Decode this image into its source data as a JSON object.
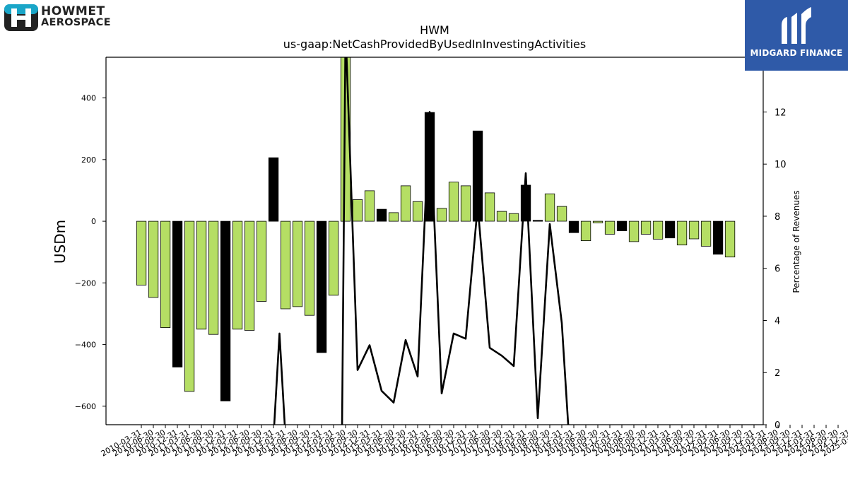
{
  "branding": {
    "left_line1": "HOWMET",
    "left_line2": "AEROSPACE",
    "right_text": "MIDGARD FINANCE"
  },
  "chart_data": {
    "type": "bar",
    "title": "HWM",
    "subtitle": "us-gaap:NetCashProvidedByUsedInInvestingActivities",
    "ylabel": "USDm",
    "y2label": "Percentage of Revenues",
    "ylim": [
      -660,
      532
    ],
    "y2lim": [
      0,
      14.1
    ],
    "yticks": [
      -600,
      -400,
      -200,
      0,
      200,
      400
    ],
    "y2ticks": [
      0,
      2,
      4,
      6,
      8,
      10,
      12
    ],
    "colors": {
      "quarter_bar": "#b5de64",
      "year_end_bar": "#000000",
      "line": "#000000"
    },
    "categories": [
      "2010-03-31",
      "2010-06-30",
      "2010-09-30",
      "2010-12-31",
      "2011-03-31",
      "2011-06-30",
      "2011-09-30",
      "2011-12-31",
      "2012-03-31",
      "2012-06-30",
      "2012-09-30",
      "2012-12-31",
      "2013-03-31",
      "2013-06-30",
      "2013-09-30",
      "2013-12-31",
      "2014-03-31",
      "2014-06-30",
      "2014-09-30",
      "2014-12-31",
      "2015-03-31",
      "2015-06-30",
      "2015-09-30",
      "2015-12-31",
      "2016-03-31",
      "2016-06-30",
      "2016-09-30",
      "2016-12-31",
      "2017-03-31",
      "2017-06-30",
      "2017-09-30",
      "2017-12-31",
      "2018-03-31",
      "2018-06-30",
      "2018-09-30",
      "2018-12-31",
      "2019-03-31",
      "2019-06-30",
      "2019-09-30",
      "2019-12-31",
      "2020-03-31",
      "2020-06-30",
      "2020-09-30",
      "2020-12-31",
      "2021-03-31",
      "2021-06-30",
      "2021-09-30",
      "2021-12-31",
      "2022-03-31",
      "2022-06-30",
      "2022-09-30",
      "2022-12-31",
      "2023-03-31",
      "2023-06-30",
      "2023-09-30",
      "2023-12-31",
      "2024-03-31",
      "2024-06-30",
      "2024-09-30",
      "2024-12-31",
      "2025-03-31"
    ],
    "xtick_labels": [
      "2010-03-31",
      "2010-06-30",
      "2010-09-30",
      "2010-12-31",
      "2011-03-31",
      "2011-06-30",
      "2011-09-30",
      "2011-12-31",
      "2012-03-31",
      "2012-06-30",
      "2012-09-30",
      "2012-12-31",
      "2013-03-31",
      "2013-06-30",
      "2013-09-30",
      "2013-12-31",
      "2014-03-31",
      "2014-06-30",
      "2014-09-30",
      "2014-12-31",
      "2015-03-31",
      "2015-06-30",
      "2015-09-30",
      "2015-12-31",
      "2016-03-31",
      "2016-06-30",
      "2016-09-30",
      "2016-12-31",
      "2017-03-31",
      "2017-06-30",
      "2017-09-30",
      "2017-12-31",
      "2018-03-31",
      "2018-06-30",
      "2018-09-30",
      "2018-12-31",
      "2019-03-31",
      "2019-06-30",
      "2019-09-30",
      "2019-12-31",
      "2020-03-31",
      "2020-06-30",
      "2020-09-30",
      "2020-12-31",
      "2021-03-31",
      "2021-06-30",
      "2021-09-30",
      "2021-12-31",
      "2022-03-31",
      "2022-06-30",
      "2022-09-30",
      "2022-12-31",
      "2023-03-31",
      "2023-06-30",
      "2023-09-30",
      "2023-12-31",
      "2024-03-31",
      "2024-06-30",
      "2024-09-30",
      "2024-12-31",
      "2025-03-31"
    ],
    "bars": [
      {
        "date": "2010-03-31",
        "value": -207,
        "year_end": false
      },
      {
        "date": "2010-06-30",
        "value": -247,
        "year_end": false
      },
      {
        "date": "2010-09-30",
        "value": -345,
        "year_end": false
      },
      {
        "date": "2010-12-31",
        "value": -473,
        "year_end": true
      },
      {
        "date": "2011-06-30",
        "value": -552,
        "year_end": false
      },
      {
        "date": "2011-09-30",
        "value": -350,
        "year_end": false
      },
      {
        "date": "2011-12-31",
        "value": -367,
        "year_end": false
      },
      {
        "date": "2012-03-31",
        "value": -583,
        "year_end": true
      },
      {
        "date": "2012-06-30",
        "value": -350,
        "year_end": false
      },
      {
        "date": "2012-09-30",
        "value": -354,
        "year_end": false
      },
      {
        "date": "2012-12-31",
        "value": -260,
        "year_end": false
      },
      {
        "date": "2013-03-31",
        "value": 206,
        "year_end": true
      },
      {
        "date": "2013-06-30",
        "value": -284,
        "year_end": false
      },
      {
        "date": "2013-09-30",
        "value": -277,
        "year_end": false
      },
      {
        "date": "2013-12-31",
        "value": -305,
        "year_end": false
      },
      {
        "date": "2014-03-31",
        "value": -426,
        "year_end": true
      },
      {
        "date": "2014-06-30",
        "value": -240,
        "year_end": false
      },
      {
        "date": "2014-09-30",
        "value": 560,
        "year_end": false
      },
      {
        "date": "2014-12-31",
        "value": 70,
        "year_end": false
      },
      {
        "date": "2015-03-31",
        "value": 99,
        "year_end": false
      },
      {
        "date": "2015-06-30",
        "value": 39,
        "year_end": true
      },
      {
        "date": "2015-09-30",
        "value": 28,
        "year_end": false
      },
      {
        "date": "2015-12-31",
        "value": 115,
        "year_end": false
      },
      {
        "date": "2016-03-31",
        "value": 64,
        "year_end": false
      },
      {
        "date": "2016-06-30",
        "value": 353,
        "year_end": true
      },
      {
        "date": "2016-09-30",
        "value": 42,
        "year_end": false
      },
      {
        "date": "2016-12-31",
        "value": 127,
        "year_end": false
      },
      {
        "date": "2017-03-31",
        "value": 115,
        "year_end": false
      },
      {
        "date": "2017-06-30",
        "value": 293,
        "year_end": true
      },
      {
        "date": "2017-09-30",
        "value": 92,
        "year_end": false
      },
      {
        "date": "2017-12-31",
        "value": 32,
        "year_end": false
      },
      {
        "date": "2018-03-31",
        "value": 25,
        "year_end": false
      },
      {
        "date": "2018-06-30",
        "value": 117,
        "year_end": true
      },
      {
        "date": "2018-09-30",
        "value": 3,
        "year_end": true
      },
      {
        "date": "2018-12-31",
        "value": 89,
        "year_end": false
      },
      {
        "date": "2019-03-31",
        "value": 48,
        "year_end": false
      },
      {
        "date": "2019-06-30",
        "value": -37,
        "year_end": true
      },
      {
        "date": "2019-09-30",
        "value": -63,
        "year_end": false
      },
      {
        "date": "2019-12-31",
        "value": -5,
        "year_end": false
      },
      {
        "date": "2020-03-31",
        "value": -42,
        "year_end": false
      },
      {
        "date": "2020-06-30",
        "value": -31,
        "year_end": true
      },
      {
        "date": "2020-09-30",
        "value": -66,
        "year_end": false
      },
      {
        "date": "2020-12-31",
        "value": -42,
        "year_end": false
      },
      {
        "date": "2021-03-31",
        "value": -58,
        "year_end": false
      },
      {
        "date": "2021-06-30",
        "value": -54,
        "year_end": true
      },
      {
        "date": "2021-09-30",
        "value": -77,
        "year_end": false
      },
      {
        "date": "2021-12-31",
        "value": -57,
        "year_end": false
      },
      {
        "date": "2022-03-31",
        "value": -81,
        "year_end": false
      },
      {
        "date": "2022-06-30",
        "value": -107,
        "year_end": true
      },
      {
        "date": "2022-09-30",
        "value": -116,
        "year_end": false
      }
    ],
    "line_points": [
      {
        "bar": 11,
        "value": -0.5
      },
      {
        "bar": 11.5,
        "value": 3.5
      },
      {
        "bar": 12,
        "value": -0.5
      },
      {
        "bar": 16.7,
        "value": -0.5
      },
      {
        "bar": 17,
        "value": 15.2
      },
      {
        "bar": 18,
        "value": 2.1
      },
      {
        "bar": 19,
        "value": 3.05
      },
      {
        "bar": 20,
        "value": 1.3
      },
      {
        "bar": 21,
        "value": 0.85
      },
      {
        "bar": 22,
        "value": 3.25
      },
      {
        "bar": 23,
        "value": 1.85
      },
      {
        "bar": 24,
        "value": 12.0
      },
      {
        "bar": 25,
        "value": 1.2
      },
      {
        "bar": 26,
        "value": 3.5
      },
      {
        "bar": 27,
        "value": 3.3
      },
      {
        "bar": 28,
        "value": 8.4
      },
      {
        "bar": 29,
        "value": 2.95
      },
      {
        "bar": 30,
        "value": 2.65
      },
      {
        "bar": 31,
        "value": 2.25
      },
      {
        "bar": 32,
        "value": 9.65
      },
      {
        "bar": 33,
        "value": 0.25
      },
      {
        "bar": 34,
        "value": 7.7
      },
      {
        "bar": 35,
        "value": 3.9
      },
      {
        "bar": 35.6,
        "value": -0.5
      }
    ]
  }
}
